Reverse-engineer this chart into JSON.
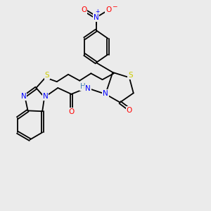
{
  "bg_color": "#ebebeb",
  "atom_colors": {
    "C": "#000000",
    "N": "#0000ff",
    "O": "#ff0000",
    "S": "#cccc00",
    "H": "#4682b4"
  },
  "figsize": [
    3.0,
    3.0
  ],
  "dpi": 100,
  "lw": 1.3,
  "fs": 7.5
}
